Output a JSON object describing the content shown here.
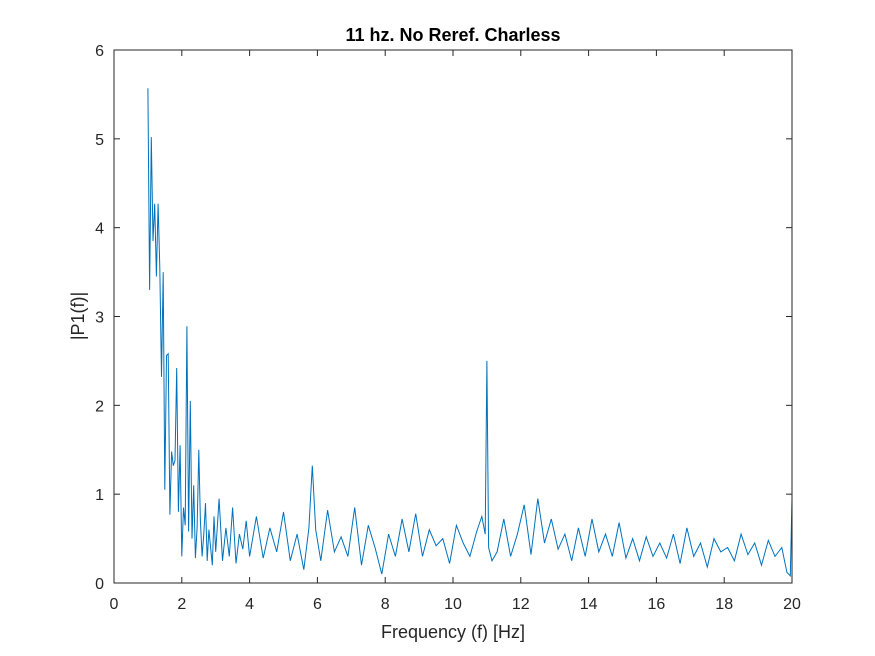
{
  "chart_data": {
    "type": "line",
    "title": "11 hz. No Reref. Charless",
    "xlabel": "Frequency (f) [Hz]",
    "ylabel": "|P1(f)|",
    "xlim": [
      0,
      20
    ],
    "ylim": [
      0,
      6
    ],
    "x_ticks": [
      0,
      2,
      4,
      6,
      8,
      10,
      12,
      14,
      16,
      18,
      20
    ],
    "x_tick_labels": [
      "0",
      "2",
      "4",
      "6",
      "8",
      "10",
      "12",
      "14",
      "16",
      "18",
      "20"
    ],
    "y_ticks": [
      0,
      1,
      2,
      3,
      4,
      5,
      6
    ],
    "y_tick_labels": [
      "0",
      "1",
      "2",
      "3",
      "4",
      "5",
      "6"
    ],
    "grid": false,
    "line_color": "#0072BD",
    "series": [
      {
        "x": [
          1.0,
          1.05,
          1.1,
          1.15,
          1.2,
          1.25,
          1.3,
          1.35,
          1.4,
          1.45,
          1.5,
          1.55,
          1.6,
          1.65,
          1.7,
          1.75,
          1.8,
          1.85,
          1.9,
          1.95,
          2.0,
          2.05,
          2.1,
          2.15,
          2.2,
          2.25,
          2.3,
          2.35,
          2.4,
          2.45,
          2.5,
          2.55,
          2.6,
          2.65,
          2.7,
          2.75,
          2.8,
          2.85,
          2.9,
          2.95,
          3.0,
          3.1,
          3.2,
          3.3,
          3.4,
          3.5,
          3.6,
          3.7,
          3.8,
          3.9,
          4.0,
          4.2,
          4.4,
          4.6,
          4.8,
          5.0,
          5.2,
          5.4,
          5.6,
          5.75,
          5.85,
          5.95,
          6.1,
          6.3,
          6.5,
          6.7,
          6.9,
          7.1,
          7.3,
          7.5,
          7.7,
          7.9,
          8.1,
          8.3,
          8.5,
          8.7,
          8.9,
          9.1,
          9.3,
          9.5,
          9.7,
          9.9,
          10.1,
          10.3,
          10.5,
          10.7,
          10.85,
          10.95,
          11.0,
          11.05,
          11.15,
          11.3,
          11.5,
          11.7,
          11.9,
          12.1,
          12.3,
          12.5,
          12.7,
          12.9,
          13.1,
          13.3,
          13.5,
          13.7,
          13.9,
          14.1,
          14.3,
          14.5,
          14.7,
          14.9,
          15.1,
          15.3,
          15.5,
          15.7,
          15.9,
          16.1,
          16.3,
          16.5,
          16.7,
          16.9,
          17.1,
          17.3,
          17.5,
          17.7,
          17.9,
          18.1,
          18.3,
          18.5,
          18.7,
          18.9,
          19.1,
          19.3,
          19.5,
          19.7,
          19.85,
          19.95,
          20.0
        ],
        "y": [
          5.57,
          3.3,
          5.02,
          3.85,
          4.27,
          3.45,
          4.27,
          3.55,
          2.32,
          3.5,
          1.05,
          2.56,
          2.58,
          0.77,
          1.48,
          1.32,
          1.38,
          2.42,
          0.8,
          1.55,
          0.3,
          0.85,
          0.65,
          2.89,
          0.58,
          2.05,
          0.5,
          1.1,
          0.28,
          0.62,
          1.5,
          0.7,
          0.3,
          0.55,
          0.9,
          0.25,
          0.6,
          0.4,
          0.2,
          0.75,
          0.35,
          0.95,
          0.25,
          0.62,
          0.3,
          0.85,
          0.22,
          0.55,
          0.38,
          0.7,
          0.3,
          0.75,
          0.28,
          0.62,
          0.35,
          0.8,
          0.25,
          0.55,
          0.15,
          0.62,
          1.32,
          0.6,
          0.25,
          0.82,
          0.35,
          0.52,
          0.3,
          0.85,
          0.2,
          0.65,
          0.4,
          0.1,
          0.55,
          0.3,
          0.72,
          0.35,
          0.78,
          0.3,
          0.6,
          0.42,
          0.5,
          0.22,
          0.65,
          0.45,
          0.3,
          0.58,
          0.75,
          0.55,
          2.5,
          0.4,
          0.25,
          0.35,
          0.72,
          0.3,
          0.55,
          0.88,
          0.32,
          0.95,
          0.45,
          0.72,
          0.38,
          0.55,
          0.25,
          0.62,
          0.3,
          0.72,
          0.35,
          0.55,
          0.3,
          0.68,
          0.28,
          0.5,
          0.25,
          0.52,
          0.3,
          0.45,
          0.28,
          0.55,
          0.22,
          0.62,
          0.3,
          0.45,
          0.18,
          0.5,
          0.35,
          0.4,
          0.25,
          0.55,
          0.32,
          0.45,
          0.2,
          0.48,
          0.3,
          0.4,
          0.12,
          0.08,
          0.95
        ]
      }
    ]
  }
}
